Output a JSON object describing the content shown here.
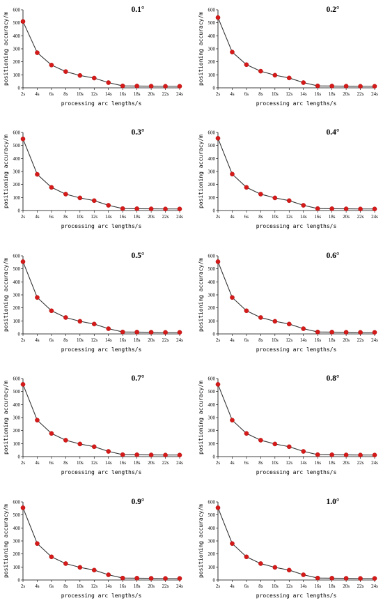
{
  "chart_data": [
    {
      "type": "line",
      "title": "0.1°",
      "xlabel": "processing arc lengths/s",
      "ylabel": "positioning accuracy/m",
      "x": [
        "2s",
        "4s",
        "6s",
        "8s",
        "10s",
        "12s",
        "14s",
        "16s",
        "18s",
        "20s",
        "22s",
        "24s"
      ],
      "y_ticks": [
        0,
        100,
        200,
        300,
        400,
        500,
        600
      ],
      "ylim": [
        0,
        600
      ],
      "values": [
        510,
        270,
        175,
        125,
        95,
        75,
        40,
        15,
        14,
        13,
        12,
        12
      ]
    },
    {
      "type": "line",
      "title": "0.2°",
      "xlabel": "processing arc lengths/s",
      "ylabel": "positioning accuracy/m",
      "x": [
        "2s",
        "4s",
        "6s",
        "8s",
        "10s",
        "12s",
        "14s",
        "16s",
        "18s",
        "20s",
        "22s",
        "24s"
      ],
      "y_ticks": [
        0,
        100,
        200,
        300,
        400,
        500,
        600
      ],
      "ylim": [
        0,
        600
      ],
      "values": [
        540,
        275,
        178,
        128,
        97,
        76,
        40,
        15,
        14,
        13,
        12,
        12
      ]
    },
    {
      "type": "line",
      "title": "0.3°",
      "xlabel": "processing arc lengths/s",
      "ylabel": "positioning accuracy/m",
      "x": [
        "2s",
        "4s",
        "6s",
        "8s",
        "10s",
        "12s",
        "14s",
        "16s",
        "18s",
        "20s",
        "22s",
        "24s"
      ],
      "y_ticks": [
        0,
        100,
        200,
        300,
        400,
        500,
        600
      ],
      "ylim": [
        0,
        600
      ],
      "values": [
        550,
        278,
        178,
        126,
        97,
        76,
        40,
        15,
        14,
        13,
        12,
        12
      ]
    },
    {
      "type": "line",
      "title": "0.4°",
      "xlabel": "processing arc lengths/s",
      "ylabel": "positioning accuracy/m",
      "x": [
        "2s",
        "4s",
        "6s",
        "8s",
        "10s",
        "12s",
        "14s",
        "16s",
        "18s",
        "20s",
        "22s",
        "24s"
      ],
      "y_ticks": [
        0,
        100,
        200,
        300,
        400,
        500,
        600
      ],
      "ylim": [
        0,
        600
      ],
      "values": [
        555,
        280,
        178,
        126,
        97,
        76,
        40,
        15,
        14,
        13,
        12,
        12
      ]
    },
    {
      "type": "line",
      "title": "0.5°",
      "xlabel": "processing arc lengths/s",
      "ylabel": "positioning accuracy/m",
      "x": [
        "2s",
        "4s",
        "6s",
        "8s",
        "10s",
        "12s",
        "14s",
        "16s",
        "18s",
        "20s",
        "22s",
        "24s"
      ],
      "y_ticks": [
        0,
        100,
        200,
        300,
        400,
        500,
        600
      ],
      "ylim": [
        0,
        600
      ],
      "values": [
        555,
        280,
        178,
        126,
        97,
        76,
        40,
        15,
        14,
        13,
        12,
        12
      ]
    },
    {
      "type": "line",
      "title": "0.6°",
      "xlabel": "processing arc lengths/s",
      "ylabel": "positioning accuracy/m",
      "x": [
        "2s",
        "4s",
        "6s",
        "8s",
        "10s",
        "12s",
        "14s",
        "16s",
        "18s",
        "20s",
        "22s",
        "24s"
      ],
      "y_ticks": [
        0,
        100,
        200,
        300,
        400,
        500,
        600
      ],
      "ylim": [
        0,
        600
      ],
      "values": [
        555,
        280,
        178,
        126,
        97,
        76,
        40,
        15,
        14,
        13,
        12,
        12
      ]
    },
    {
      "type": "line",
      "title": "0.7°",
      "xlabel": "processing arc lengths/s",
      "ylabel": "positioning accuracy/m",
      "x": [
        "2s",
        "4s",
        "6s",
        "8s",
        "10s",
        "12s",
        "14s",
        "16s",
        "18s",
        "20s",
        "22s",
        "24s"
      ],
      "y_ticks": [
        0,
        100,
        200,
        300,
        400,
        500,
        600
      ],
      "ylim": [
        0,
        600
      ],
      "values": [
        555,
        280,
        178,
        126,
        97,
        76,
        40,
        15,
        14,
        13,
        12,
        12
      ]
    },
    {
      "type": "line",
      "title": "0.8°",
      "xlabel": "processing arc lengths/s",
      "ylabel": "positioning accuracy/m",
      "x": [
        "2s",
        "4s",
        "6s",
        "8s",
        "10s",
        "12s",
        "14s",
        "16s",
        "18s",
        "20s",
        "22s",
        "24s"
      ],
      "y_ticks": [
        0,
        100,
        200,
        300,
        400,
        500,
        600
      ],
      "ylim": [
        0,
        600
      ],
      "values": [
        555,
        280,
        178,
        126,
        97,
        76,
        40,
        15,
        14,
        13,
        12,
        12
      ]
    },
    {
      "type": "line",
      "title": "0.9°",
      "xlabel": "processing arc lengths/s",
      "ylabel": "positioning accuracy/m",
      "x": [
        "2s",
        "4s",
        "6s",
        "8s",
        "10s",
        "12s",
        "14s",
        "16s",
        "18s",
        "20s",
        "22s",
        "24s"
      ],
      "y_ticks": [
        0,
        100,
        200,
        300,
        400,
        500,
        600
      ],
      "ylim": [
        0,
        600
      ],
      "values": [
        555,
        280,
        178,
        126,
        97,
        76,
        40,
        15,
        14,
        13,
        12,
        12
      ]
    },
    {
      "type": "line",
      "title": "1.0°",
      "xlabel": "processing arc lengths/s",
      "ylabel": "positioning accuracy/m",
      "x": [
        "2s",
        "4s",
        "6s",
        "8s",
        "10s",
        "12s",
        "14s",
        "16s",
        "18s",
        "20s",
        "22s",
        "24s"
      ],
      "y_ticks": [
        0,
        100,
        200,
        300,
        400,
        500,
        600
      ],
      "ylim": [
        0,
        600
      ],
      "values": [
        555,
        280,
        178,
        126,
        97,
        76,
        40,
        15,
        14,
        13,
        12,
        12
      ]
    }
  ],
  "colors": {
    "marker": "#d51a1a",
    "line": "#333333",
    "axis": "#000000"
  }
}
